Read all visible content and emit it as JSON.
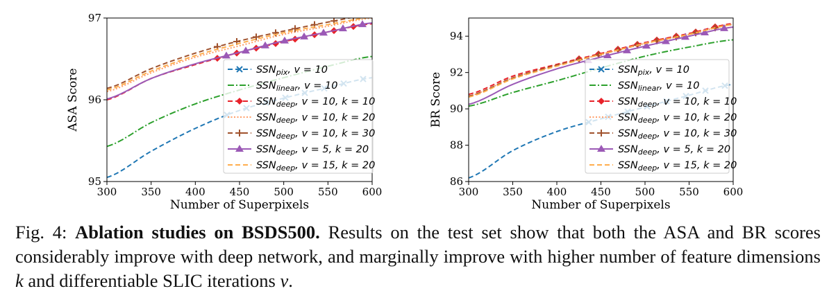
{
  "chart_data": [
    {
      "type": "line",
      "xlabel": "Number of Superpixels",
      "ylabel": "ASA Score",
      "xlim": [
        300,
        600
      ],
      "ylim": [
        95,
        97
      ],
      "xticks": [
        "300",
        "350",
        "400",
        "450",
        "500",
        "550",
        "600"
      ],
      "yticks": [
        "95",
        "96",
        "97"
      ],
      "grid": false,
      "legend_position": "center-right",
      "x": [
        300,
        350,
        400,
        450,
        500,
        550,
        600
      ],
      "series": [
        {
          "name": "SSN_pix, v = 10",
          "base": "SSN",
          "sub": "pix",
          "rest": ", v = 10",
          "color": "#1f77b4",
          "style": "dashed",
          "marker": "x",
          "values": [
            95.05,
            95.37,
            95.65,
            95.87,
            96.02,
            96.15,
            96.27
          ]
        },
        {
          "name": "SSN_linear, v = 10",
          "base": "SSN",
          "sub": "linear",
          "rest": ", v = 10",
          "color": "#2ca02c",
          "style": "dashdot",
          "marker": "none",
          "values": [
            95.43,
            95.72,
            95.95,
            96.12,
            96.27,
            96.41,
            96.53
          ]
        },
        {
          "name": "SSN_deep, v = 10, k = 10",
          "base": "SSN",
          "sub": "deep",
          "rest": ", v = 10, k = 10",
          "color": "#e8222a",
          "style": "dashed",
          "marker": "diamond",
          "values": [
            96.0,
            96.26,
            96.43,
            96.58,
            96.71,
            96.83,
            96.93
          ]
        },
        {
          "name": "SSN_deep, v = 10, k = 20",
          "base": "SSN",
          "sub": "deep",
          "rest": ", v = 10, k = 20",
          "color": "#ff9f6a",
          "style": "dotted",
          "marker": "none",
          "values": [
            96.1,
            96.33,
            96.52,
            96.66,
            96.8,
            96.9,
            97.0
          ]
        },
        {
          "name": "SSN_deep, v = 10, k = 30",
          "base": "SSN",
          "sub": "deep",
          "rest": ", v = 10, k = 30",
          "color": "#a0522d",
          "style": "dashed",
          "marker": "plus",
          "values": [
            96.14,
            96.38,
            96.57,
            96.72,
            96.84,
            96.95,
            97.04
          ]
        },
        {
          "name": "SSN_deep, v = 5, k = 20",
          "base": "SSN",
          "sub": "deep",
          "rest": ", v = 5, k = 20",
          "color": "#9b59b6",
          "style": "solid",
          "marker": "triangle",
          "values": [
            96.01,
            96.26,
            96.44,
            96.58,
            96.72,
            96.83,
            96.94
          ]
        },
        {
          "name": "SSN_deep, v = 15, k = 20",
          "base": "SSN",
          "sub": "deep",
          "rest": ", v = 15, k = 20",
          "color": "#ffad4d",
          "style": "dashed",
          "marker": "none",
          "values": [
            96.12,
            96.35,
            96.54,
            96.69,
            96.82,
            96.92,
            97.01
          ]
        }
      ]
    },
    {
      "type": "line",
      "xlabel": "Number of Superpixels",
      "ylabel": "BR Score",
      "xlim": [
        300,
        600
      ],
      "ylim": [
        86,
        95
      ],
      "xticks": [
        "300",
        "350",
        "400",
        "450",
        "500",
        "550",
        "600"
      ],
      "yticks": [
        "86",
        "88",
        "90",
        "92",
        "94"
      ],
      "grid": false,
      "legend_position": "center-right",
      "x": [
        300,
        350,
        400,
        450,
        500,
        550,
        600
      ],
      "series": [
        {
          "name": "SSN_pix, v = 10",
          "base": "SSN",
          "sub": "pix",
          "rest": ", v = 10",
          "color": "#1f77b4",
          "style": "dashed",
          "marker": "x",
          "values": [
            86.2,
            87.7,
            88.75,
            89.45,
            90.1,
            90.75,
            91.35
          ]
        },
        {
          "name": "SSN_linear, v = 10",
          "base": "SSN",
          "sub": "linear",
          "rest": ", v = 10",
          "color": "#2ca02c",
          "style": "dashdot",
          "marker": "none",
          "values": [
            90.15,
            90.9,
            91.55,
            92.25,
            92.9,
            93.4,
            93.8
          ]
        },
        {
          "name": "SSN_deep, v = 10, k = 10",
          "base": "SSN",
          "sub": "deep",
          "rest": ", v = 10, k = 10",
          "color": "#e8222a",
          "style": "dashed",
          "marker": "diamond",
          "values": [
            90.8,
            91.8,
            92.45,
            93.05,
            93.65,
            94.15,
            94.7
          ]
        },
        {
          "name": "SSN_deep, v = 10, k = 20",
          "base": "SSN",
          "sub": "deep",
          "rest": ", v = 10, k = 20",
          "color": "#ff9f6a",
          "style": "dotted",
          "marker": "none",
          "values": [
            90.7,
            91.7,
            92.4,
            93.0,
            93.6,
            94.1,
            94.65
          ]
        },
        {
          "name": "SSN_deep, v = 10, k = 30",
          "base": "SSN",
          "sub": "deep",
          "rest": ", v = 10, k = 30",
          "color": "#a0522d",
          "style": "dashed",
          "marker": "plus",
          "values": [
            90.7,
            91.7,
            92.4,
            93.0,
            93.6,
            94.1,
            94.65
          ]
        },
        {
          "name": "SSN_deep, v = 5, k = 20",
          "base": "SSN",
          "sub": "deep",
          "rest": ", v = 5, k = 20",
          "color": "#9b59b6",
          "style": "solid",
          "marker": "triangle",
          "values": [
            90.25,
            91.35,
            92.2,
            92.85,
            93.45,
            94.0,
            94.5
          ]
        },
        {
          "name": "SSN_deep, v = 15, k = 20",
          "base": "SSN",
          "sub": "deep",
          "rest": ", v = 15, k = 20",
          "color": "#ffad4d",
          "style": "dashed",
          "marker": "none",
          "values": [
            90.65,
            91.65,
            92.35,
            93.0,
            93.6,
            94.1,
            94.65
          ]
        }
      ]
    }
  ],
  "caption": {
    "label": "Fig. 4:",
    "bold": "Ablation studies on BSDS500.",
    "text1": " Results on the test set show that both the ASA and BR scores considerably improve with deep network, and marginally improve with higher number of feature dimensions ",
    "k": "k",
    "text2": " and differentiable SLIC iterations ",
    "v": "v",
    "text3": "."
  }
}
